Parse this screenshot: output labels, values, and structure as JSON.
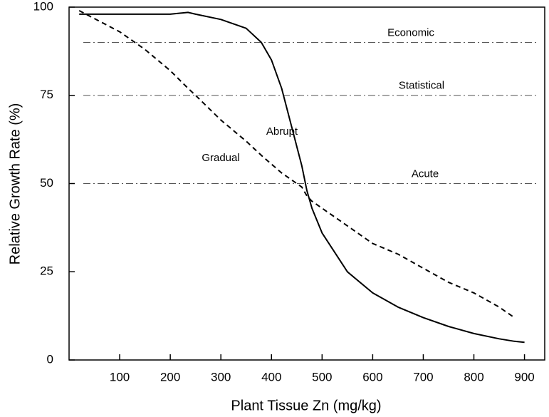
{
  "chart_data": {
    "type": "line",
    "x_label": "Plant Tissue Zn (mg/kg)",
    "y_label": "Relative Growth Rate (%)",
    "x": [
      20,
      100,
      150,
      200,
      235,
      250,
      300,
      350,
      380,
      400,
      420,
      440,
      460,
      470,
      480,
      500,
      550,
      600,
      650,
      700,
      750,
      800,
      850,
      880,
      900
    ],
    "series": [
      {
        "name": "Abrupt",
        "color": "#000000",
        "style": "solid",
        "values": [
          98,
          98,
          98,
          98,
          98.5,
          98,
          96.5,
          94,
          90,
          85,
          77,
          66,
          55,
          48,
          43,
          36,
          25,
          19,
          15,
          12,
          9.5,
          7.5,
          6,
          5.3,
          5
        ]
      },
      {
        "name": "Gradual",
        "color": "#000000",
        "style": "dashed",
        "values": [
          99,
          93,
          88,
          82,
          77,
          75,
          68,
          62,
          58,
          55.5,
          53,
          51,
          49,
          46.5,
          45,
          43,
          38,
          33,
          30,
          26,
          22,
          19,
          15,
          12,
          null
        ]
      }
    ],
    "reference_lines": [
      {
        "label": "Economic",
        "value": 90
      },
      {
        "label": "Statistical",
        "value": 75
      },
      {
        "label": "Acute",
        "value": 50
      }
    ],
    "xlim": [
      0,
      940
    ],
    "ylim": [
      0,
      100
    ],
    "xticks": [
      100,
      200,
      300,
      400,
      500,
      600,
      700,
      800,
      900
    ],
    "yticks": [
      0,
      25,
      50,
      75,
      100
    ]
  }
}
